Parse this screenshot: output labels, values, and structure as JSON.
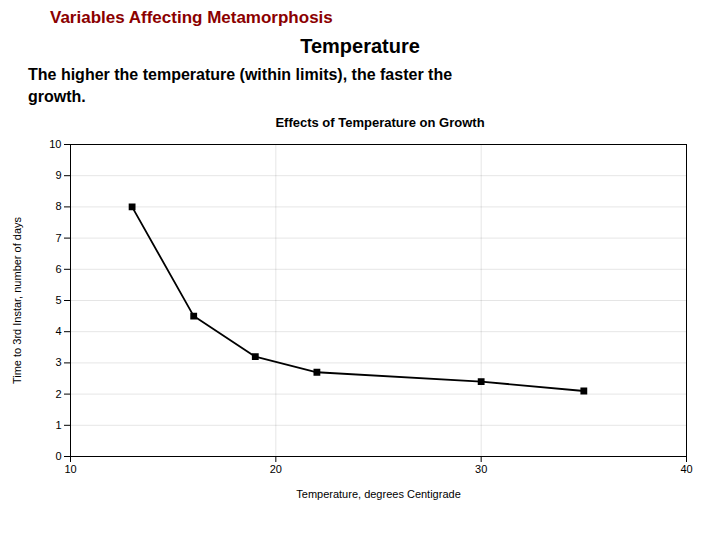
{
  "chart_data": {
    "type": "line",
    "title": "Effects of Temperature on Growth",
    "annotations": [
      {
        "text": "Variables Affecting Metamorphosis",
        "color": "#8B0000"
      },
      {
        "text": "Temperature"
      },
      {
        "text": "The higher the temperature (within limits), the faster the\ngrowth."
      }
    ],
    "x_label": "Temperature, degrees Centigrade",
    "y_label": "Time to 3rd Instar, number of days",
    "x": [
      13,
      16,
      19,
      22,
      30,
      35
    ],
    "values": [
      8.0,
      4.5,
      3.2,
      2.7,
      2.4,
      2.1
    ],
    "color": "#000000",
    "marker": "square",
    "xlim": [
      10,
      40
    ],
    "ylim": [
      0,
      10
    ],
    "xticks": [
      10,
      20,
      30,
      40
    ],
    "yticks": [
      0,
      1,
      2,
      3,
      4,
      5,
      6,
      7,
      8,
      9,
      10
    ],
    "grid": true
  }
}
